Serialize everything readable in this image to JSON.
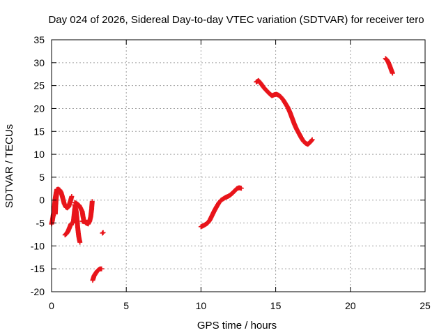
{
  "chart_data": {
    "type": "scatter",
    "title": "Day 024 of 2026, Sidereal Day-to-day VTEC variation (SDTVAR) for receiver tero",
    "xlabel": "GPS time / hours",
    "ylabel": "SDTVAR / TECUs",
    "xlim": [
      0,
      25
    ],
    "ylim": [
      -20,
      35
    ],
    "xticks": [
      "0",
      "5",
      "10",
      "15",
      "20",
      "25"
    ],
    "yticks": [
      "-20",
      "-15",
      "-10",
      "-5",
      "0",
      "5",
      "10",
      "15",
      "20",
      "25",
      "30",
      "35"
    ],
    "grid": true,
    "legend": "none",
    "marker": "plus",
    "color": "#e8141a",
    "segments": [
      [
        [
          0.0,
          -5.2
        ],
        [
          0.05,
          -4.5
        ],
        [
          0.1,
          -3.5
        ],
        [
          0.15,
          -2.5
        ],
        [
          0.2,
          -1.0
        ],
        [
          0.25,
          0.5
        ],
        [
          0.3,
          1.5
        ],
        [
          0.35,
          2.3
        ],
        [
          0.45,
          2.4
        ],
        [
          0.55,
          2.2
        ],
        [
          0.65,
          1.6
        ],
        [
          0.75,
          0.4
        ],
        [
          0.85,
          -0.8
        ],
        [
          0.95,
          -1.5
        ],
        [
          1.05,
          -1.7
        ],
        [
          1.15,
          -1.4
        ],
        [
          1.25,
          -0.3
        ],
        [
          1.35,
          0.8
        ]
      ],
      [
        [
          0.25,
          -3.0
        ],
        [
          0.28,
          -1.0
        ],
        [
          0.31,
          0.5
        ],
        [
          0.34,
          1.5
        ]
      ],
      [
        [
          0.9,
          -7.6
        ],
        [
          1.0,
          -7.3
        ],
        [
          1.1,
          -6.8
        ],
        [
          1.2,
          -6.0
        ],
        [
          1.3,
          -5.2
        ]
      ],
      [
        [
          1.45,
          -5.0
        ],
        [
          1.5,
          -3.5
        ],
        [
          1.55,
          -2.0
        ],
        [
          1.6,
          -1.0
        ]
      ],
      [
        [
          1.55,
          -1.0
        ],
        [
          1.65,
          -2.5
        ],
        [
          1.7,
          -4.0
        ],
        [
          1.75,
          -6.0
        ],
        [
          1.8,
          -7.5
        ],
        [
          1.85,
          -8.5
        ],
        [
          1.9,
          -9.2
        ]
      ],
      [
        [
          1.55,
          -0.5
        ],
        [
          1.7,
          -0.8
        ],
        [
          1.85,
          -1.2
        ],
        [
          1.95,
          -1.8
        ],
        [
          2.05,
          -2.5
        ],
        [
          2.1,
          -3.5
        ],
        [
          2.15,
          -4.4
        ],
        [
          2.3,
          -5.0
        ],
        [
          2.45,
          -5.2
        ],
        [
          2.55,
          -4.6
        ],
        [
          2.62,
          -3.6
        ],
        [
          2.68,
          -2.0
        ],
        [
          2.72,
          -0.3
        ]
      ],
      [
        [
          2.05,
          -4.6
        ],
        [
          2.15,
          -4.7
        ],
        [
          2.25,
          -4.4
        ]
      ],
      [
        [
          3.4,
          -7.2
        ],
        [
          3.45,
          -7.1
        ]
      ],
      [
        [
          2.75,
          -17.5
        ],
        [
          2.8,
          -17.0
        ],
        [
          2.85,
          -16.5
        ],
        [
          2.95,
          -16.0
        ],
        [
          3.05,
          -15.5
        ],
        [
          3.15,
          -15.2
        ],
        [
          3.25,
          -15.0
        ],
        [
          3.35,
          -15.0
        ]
      ],
      [
        [
          10.0,
          -5.8
        ],
        [
          10.15,
          -5.6
        ],
        [
          10.3,
          -5.3
        ],
        [
          10.45,
          -5.0
        ],
        [
          10.6,
          -4.3
        ],
        [
          10.75,
          -3.3
        ],
        [
          10.9,
          -2.3
        ],
        [
          11.05,
          -1.4
        ],
        [
          11.2,
          -0.6
        ],
        [
          11.35,
          0.0
        ],
        [
          11.5,
          0.3
        ],
        [
          11.65,
          0.6
        ],
        [
          11.8,
          0.8
        ],
        [
          11.95,
          1.1
        ],
        [
          12.1,
          1.5
        ],
        [
          12.25,
          2.0
        ],
        [
          12.4,
          2.5
        ],
        [
          12.55,
          2.7
        ],
        [
          12.7,
          2.6
        ]
      ],
      [
        [
          13.7,
          25.8
        ],
        [
          13.85,
          26.1
        ],
        [
          14.0,
          25.5
        ],
        [
          14.15,
          24.8
        ],
        [
          14.3,
          24.2
        ],
        [
          14.45,
          23.7
        ],
        [
          14.6,
          23.2
        ],
        [
          14.75,
          22.8
        ],
        [
          14.9,
          23.0
        ],
        [
          15.05,
          23.1
        ],
        [
          15.2,
          22.9
        ],
        [
          15.35,
          22.5
        ],
        [
          15.5,
          21.9
        ],
        [
          15.65,
          21.1
        ],
        [
          15.8,
          20.3
        ],
        [
          15.95,
          19.2
        ],
        [
          16.1,
          17.9
        ],
        [
          16.25,
          16.6
        ],
        [
          16.4,
          15.5
        ],
        [
          16.55,
          14.6
        ],
        [
          16.7,
          13.7
        ],
        [
          16.85,
          12.9
        ],
        [
          17.0,
          12.4
        ],
        [
          17.15,
          12.2
        ],
        [
          17.3,
          12.6
        ],
        [
          17.45,
          13.2
        ]
      ],
      [
        [
          22.35,
          30.9
        ],
        [
          22.45,
          30.6
        ],
        [
          22.55,
          30.0
        ],
        [
          22.65,
          29.2
        ],
        [
          22.75,
          28.3
        ],
        [
          22.82,
          27.7
        ]
      ]
    ]
  }
}
